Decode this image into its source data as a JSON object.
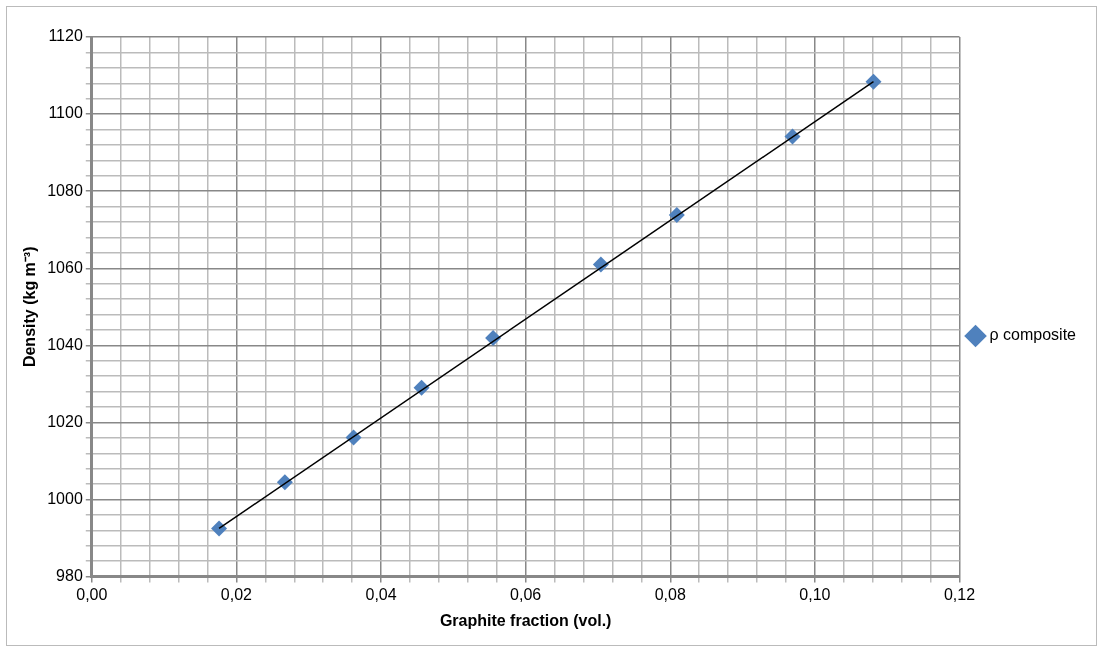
{
  "chart_data": {
    "type": "scatter",
    "xlabel": "Graphite fraction (vol.)",
    "ylabel": "Density (kg m⁻³)",
    "xlim": [
      0,
      0.12
    ],
    "ylim": [
      980,
      1120
    ],
    "xticks": [
      {
        "value": 0,
        "label": "0,00"
      },
      {
        "value": 0.004,
        "label": null
      },
      {
        "value": 0.008,
        "label": null
      },
      {
        "value": 0.012,
        "label": null
      },
      {
        "value": 0.016,
        "label": null
      },
      {
        "value": 0.02,
        "label": "0,02"
      },
      {
        "value": 0.024,
        "label": null
      },
      {
        "value": 0.028,
        "label": null
      },
      {
        "value": 0.032,
        "label": null
      },
      {
        "value": 0.036,
        "label": null
      },
      {
        "value": 0.04,
        "label": "0,04"
      },
      {
        "value": 0.044,
        "label": null
      },
      {
        "value": 0.048,
        "label": null
      },
      {
        "value": 0.052,
        "label": null
      },
      {
        "value": 0.056,
        "label": null
      },
      {
        "value": 0.06,
        "label": "0,06"
      },
      {
        "value": 0.064,
        "label": null
      },
      {
        "value": 0.068,
        "label": null
      },
      {
        "value": 0.072,
        "label": null
      },
      {
        "value": 0.076,
        "label": null
      },
      {
        "value": 0.08,
        "label": "0,08"
      },
      {
        "value": 0.084,
        "label": null
      },
      {
        "value": 0.088,
        "label": null
      },
      {
        "value": 0.092,
        "label": null
      },
      {
        "value": 0.096,
        "label": null
      },
      {
        "value": 0.1,
        "label": "0,10"
      },
      {
        "value": 0.104,
        "label": null
      },
      {
        "value": 0.108,
        "label": null
      },
      {
        "value": 0.112,
        "label": null
      },
      {
        "value": 0.116,
        "label": null
      },
      {
        "value": 0.12,
        "label": "0,12"
      }
    ],
    "yticks": [
      980,
      {
        "value": 984,
        "label": null
      },
      {
        "value": 988,
        "label": null
      },
      {
        "value": 992,
        "label": null
      },
      {
        "value": 996,
        "label": null
      },
      1000,
      {
        "value": 1004,
        "label": null
      },
      {
        "value": 1008,
        "label": null
      },
      {
        "value": 1012,
        "label": null
      },
      {
        "value": 1016,
        "label": null
      },
      1020,
      {
        "value": 1024,
        "label": null
      },
      {
        "value": 1028,
        "label": null
      },
      {
        "value": 1032,
        "label": null
      },
      {
        "value": 1036,
        "label": null
      },
      1040,
      {
        "value": 1044,
        "label": null
      },
      {
        "value": 1048,
        "label": null
      },
      {
        "value": 1052,
        "label": null
      },
      {
        "value": 1056,
        "label": null
      },
      1060,
      {
        "value": 1064,
        "label": null
      },
      {
        "value": 1068,
        "label": null
      },
      {
        "value": 1072,
        "label": null
      },
      {
        "value": 1076,
        "label": null
      },
      1080,
      {
        "value": 1084,
        "label": null
      },
      {
        "value": 1088,
        "label": null
      },
      {
        "value": 1092,
        "label": null
      },
      {
        "value": 1096,
        "label": null
      },
      1100,
      {
        "value": 1104,
        "label": null
      },
      {
        "value": 1108,
        "label": null
      },
      {
        "value": 1112,
        "label": null
      },
      {
        "value": 1116,
        "label": null
      },
      1120
    ],
    "grid": true,
    "legend": "right",
    "marker": "diamond",
    "series": [
      {
        "name": "ρ composite",
        "color": "#4f81bd",
        "x": [
          0.0176,
          0.0267,
          0.0362,
          0.0456,
          0.0555,
          0.0704,
          0.0809,
          0.0969,
          0.1081
        ],
        "values": [
          992.5,
          1004.5,
          1016.1,
          1029.0,
          1041.9,
          1061.0,
          1073.8,
          1094.2,
          1108.4
        ]
      },
      {
        "type": "line",
        "color": "#000000",
        "marker": "none",
        "x": [
          0.0176,
          0.1081
        ],
        "values": [
          992.5,
          1108.4
        ]
      }
    ]
  }
}
